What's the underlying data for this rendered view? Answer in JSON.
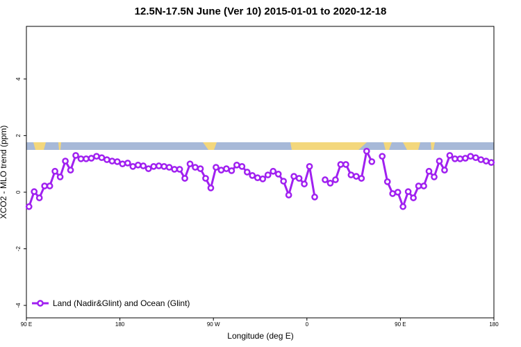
{
  "chart_data": {
    "type": "line",
    "title": "12.5N-17.5N June (Ver 10)   2015-01-01 to 2020-12-18",
    "x_label": "Longitude (deg E)",
    "y_label": "XCO2 - MLO trend (ppm)",
    "xlim": [
      90,
      540
    ],
    "ylim": [
      -4.44,
      5.86
    ],
    "xticks": [
      {
        "value": 90,
        "label": "90 E"
      },
      180,
      {
        "value": 270,
        "label": "90 W"
      },
      {
        "value": 360,
        "label": "0"
      },
      {
        "value": 450,
        "label": "90 E"
      },
      {
        "value": 540,
        "label": "180"
      }
    ],
    "yticks": [
      -4,
      -2,
      0,
      2,
      4
    ],
    "legend": "bottom-left",
    "x": [
      92.5,
      97.5,
      102.5,
      107.5,
      112.5,
      117.5,
      122.5,
      127.5,
      132.5,
      137.5,
      142.5,
      147.5,
      152.5,
      157.5,
      162.5,
      167.5,
      172.5,
      177.5,
      182.5,
      187.5,
      192.5,
      197.5,
      202.5,
      207.5,
      212.5,
      217.5,
      222.5,
      227.5,
      232.5,
      237.5,
      242.5,
      247.5,
      252.5,
      257.5,
      262.5,
      267.5,
      272.5,
      277.5,
      282.5,
      287.5,
      292.5,
      297.5,
      302.5,
      307.5,
      312.5,
      317.5,
      322.5,
      327.5,
      332.5,
      337.5,
      342.5,
      347.5,
      352.5,
      357.5,
      362.5,
      367.5,
      372.5,
      377.5,
      382.5,
      387.5,
      392.5,
      397.5,
      402.5,
      407.5,
      412.5,
      417.5,
      422.5,
      427.5,
      432.5,
      437.5,
      442.5,
      447.5,
      452.5,
      457.5,
      462.5,
      467.5,
      472.5,
      477.5,
      482.5,
      487.5,
      492.5,
      497.5,
      502.5,
      507.5,
      512.5,
      517.5,
      522.5,
      527.5,
      532.5,
      537.5
    ],
    "series": [
      {
        "name": "Land (Nadir&Glint) and Ocean (Glint)",
        "color": "#a020f0",
        "values": [
          -0.51,
          0.02,
          -0.2,
          0.22,
          0.22,
          0.74,
          0.54,
          1.1,
          0.78,
          1.3,
          1.18,
          1.18,
          1.2,
          1.27,
          1.22,
          1.15,
          1.1,
          1.08,
          1.0,
          1.03,
          0.91,
          0.96,
          0.93,
          0.83,
          0.91,
          0.93,
          0.91,
          0.88,
          0.81,
          0.81,
          0.49,
          1.0,
          0.88,
          0.83,
          0.49,
          0.15,
          0.88,
          0.78,
          0.83,
          0.76,
          0.96,
          0.91,
          0.71,
          0.59,
          0.51,
          0.47,
          0.61,
          0.74,
          0.64,
          0.39,
          -0.1,
          0.56,
          0.49,
          0.29,
          0.91,
          -0.17,
          null,
          0.44,
          0.32,
          0.44,
          0.98,
          0.98,
          0.61,
          0.56,
          0.49,
          1.45,
          1.08,
          null,
          1.27,
          0.37,
          -0.05,
          0.0,
          -0.51,
          0.02,
          -0.2,
          0.22,
          0.22,
          0.74,
          0.54,
          1.1,
          0.78,
          1.3,
          1.18,
          1.18,
          1.2,
          1.27,
          1.22,
          1.15,
          1.1,
          1.05
        ]
      }
    ]
  }
}
